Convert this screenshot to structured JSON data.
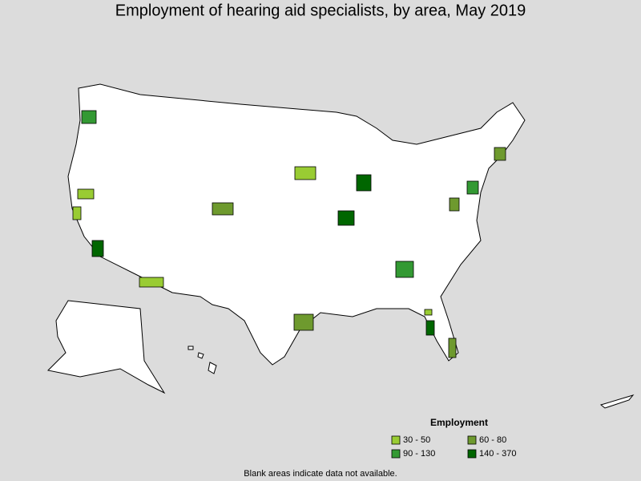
{
  "title": "Employment of hearing aid specialists, by area, May 2019",
  "legend": {
    "title": "Employment",
    "items": [
      {
        "label": "30 - 50",
        "color": "#99cc33"
      },
      {
        "label": "60 - 80",
        "color": "#6e9a2e"
      },
      {
        "label": "90 - 130",
        "color": "#339933"
      },
      {
        "label": "140 - 370",
        "color": "#006600"
      }
    ]
  },
  "footnote": "Blank areas indicate data not available."
}
